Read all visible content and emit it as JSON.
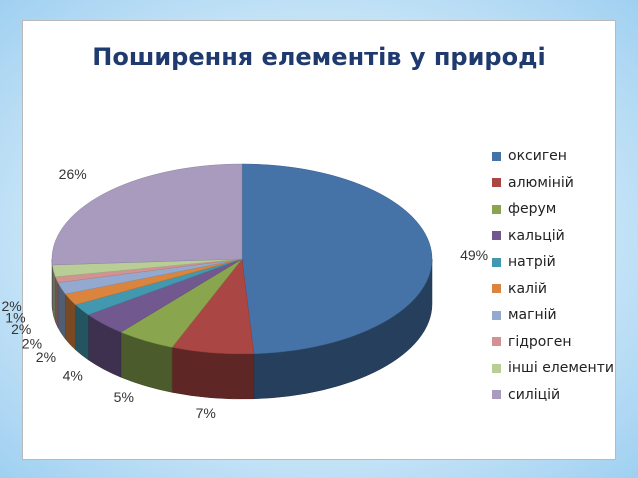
{
  "chart_data": {
    "type": "pie",
    "style": "3d",
    "title": "Поширення елементів у природі",
    "series": [
      {
        "name": "оксиген",
        "value": 49,
        "label": "49%",
        "color": "#4572a7"
      },
      {
        "name": "алюміній",
        "value": 7,
        "label": "7%",
        "color": "#aa4643"
      },
      {
        "name": "ферум",
        "value": 5,
        "label": "5%",
        "color": "#89a54e"
      },
      {
        "name": "кальцій",
        "value": 4,
        "label": "4%",
        "color": "#71588f"
      },
      {
        "name": "натрій",
        "value": 2,
        "label": "2%",
        "color": "#4198af"
      },
      {
        "name": "калій",
        "value": 2,
        "label": "2%",
        "color": "#db843d"
      },
      {
        "name": "магній",
        "value": 2,
        "label": "2%",
        "color": "#93a9cf"
      },
      {
        "name": "гідроген",
        "value": 1,
        "label": "1%",
        "color": "#d19392"
      },
      {
        "name": "інші елементи",
        "value": 2,
        "label": "2%",
        "color": "#b9cd96"
      },
      {
        "name": "силіцій",
        "value": 26,
        "label": "26%",
        "color": "#a99bbd"
      }
    ],
    "legend": "right"
  }
}
